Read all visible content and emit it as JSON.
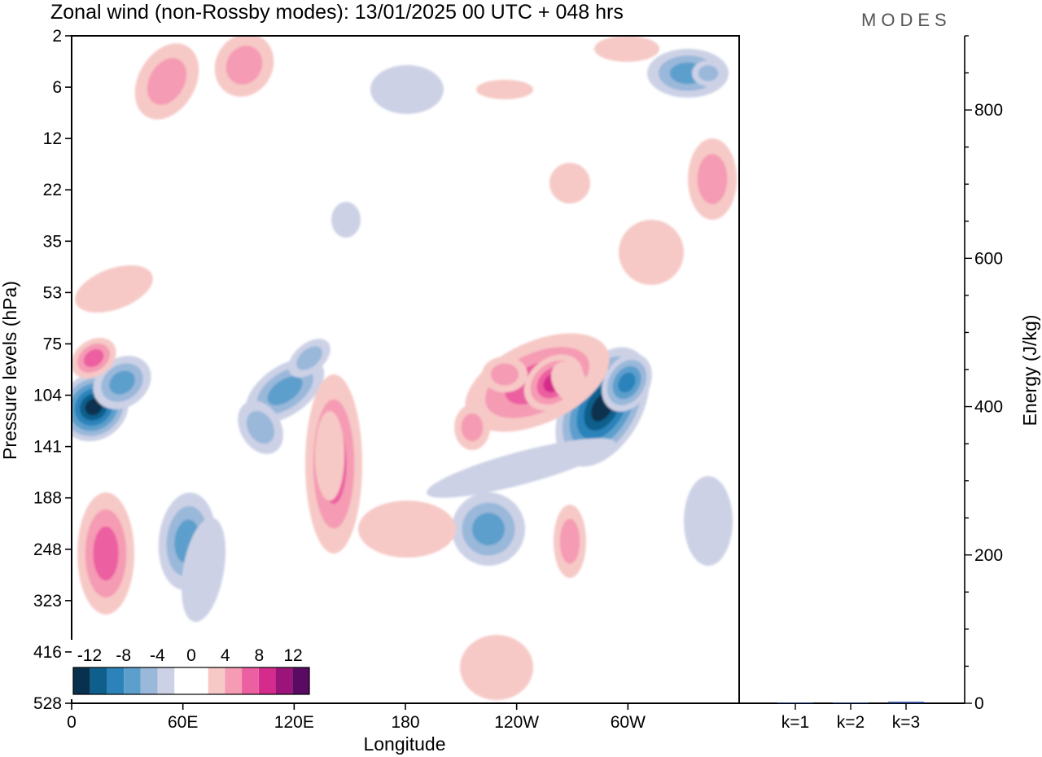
{
  "title": "Zonal wind (non-Rossby modes):  13/01/2025  00 UTC  + 048 hrs",
  "logo": "MODES",
  "chart_data": [
    {
      "type": "heatmap",
      "title": "Zonal wind (non-Rossby modes):  13/01/2025  00 UTC  + 048 hrs",
      "xlabel": "Longitude",
      "ylabel": "Pressure levels (hPa)",
      "x_ticks": [
        "0",
        "60E",
        "120E",
        "180",
        "120W",
        "60W"
      ],
      "x_tick_values": [
        0,
        60,
        120,
        180,
        240,
        300
      ],
      "xlim": [
        0,
        360
      ],
      "y_ticks": [
        "2",
        "6",
        "12",
        "22",
        "35",
        "53",
        "75",
        "104",
        "141",
        "188",
        "248",
        "323",
        "416",
        "528"
      ],
      "y_axis": "categorical pressure levels, top = 2 hPa, bottom = 528 hPa",
      "colorbar": {
        "labels": [
          "-12",
          "-8",
          "-4",
          "0",
          "4",
          "8",
          "12"
        ],
        "colors": [
          "#08304f",
          "#0f5f8c",
          "#2b83ba",
          "#5d9fcc",
          "#9ab8da",
          "#ccd1e6",
          "#ffffff",
          "#ffffff",
          "#f6c9c6",
          "#f59bb4",
          "#ec5fa0",
          "#d42b8c",
          "#9a147a",
          "#5a0a63"
        ],
        "levels": [
          -14,
          -12,
          -10,
          -8,
          -6,
          -4,
          -2,
          0,
          2,
          4,
          6,
          8,
          10,
          12,
          14
        ]
      },
      "features": [
        {
          "sign": "negative",
          "lon": 5,
          "level": "104-141",
          "peak": -13
        },
        {
          "sign": "negative",
          "lon": 105,
          "level": "104-141",
          "peak": -7
        },
        {
          "sign": "negative",
          "lon": 50,
          "level": "188-323",
          "peak": -7
        },
        {
          "sign": "negative",
          "lon": 265,
          "level": "104-188",
          "peak": -12
        },
        {
          "sign": "negative",
          "lon": 235,
          "level": "188-248",
          "peak": -7
        },
        {
          "sign": "negative",
          "lon": 320,
          "level": "2-6",
          "peak": -8
        },
        {
          "sign": "positive",
          "lon": 2,
          "level": "75-104",
          "peak": 8
        },
        {
          "sign": "positive",
          "lon": 135,
          "level": "141-248",
          "peak": 7
        },
        {
          "sign": "positive",
          "lon": 20,
          "level": "188-323",
          "peak": 6
        },
        {
          "sign": "positive",
          "lon": 225,
          "level": "104-141",
          "peak": 8
        },
        {
          "sign": "positive",
          "lon": 250,
          "level": "75-104",
          "peak": 12
        },
        {
          "sign": "positive",
          "lon": 90,
          "level": "2-12",
          "peak": 6
        },
        {
          "sign": "positive",
          "lon": 350,
          "level": "12-22",
          "peak": 6
        }
      ]
    },
    {
      "type": "bar",
      "categories": [
        "k=1",
        "k=2",
        "k=3"
      ],
      "values": [
        1,
        1,
        2
      ],
      "ylabel": "Energy (J/kg)",
      "ylim": [
        0,
        900
      ],
      "y_ticks": [
        0,
        200,
        400,
        600,
        800
      ],
      "color": "#1f3f8f"
    }
  ]
}
